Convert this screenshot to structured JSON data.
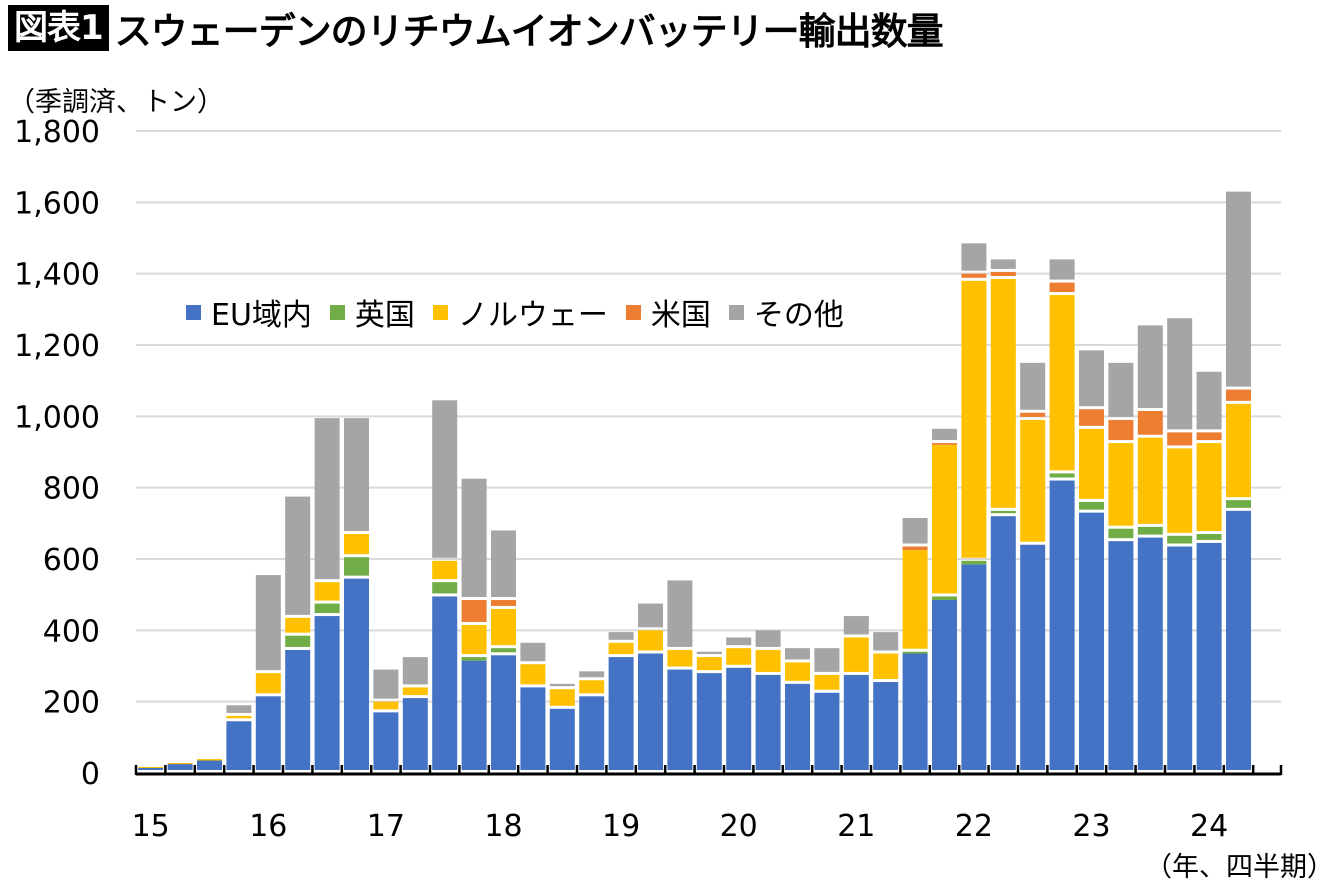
{
  "title": {
    "badge": "図表1",
    "text": "スウェーデンのリチウムイオンバッテリー輸出数量"
  },
  "chart_data": {
    "type": "bar",
    "stacked": true,
    "title": "スウェーデンのリチウムイオンバッテリー輸出数量",
    "ylabel": "（季調済、トン）",
    "xlabel": "（年、四半期）",
    "ylim": [
      0,
      1800
    ],
    "yticks": [
      0,
      200,
      400,
      600,
      800,
      1000,
      1200,
      1400,
      1600,
      1800
    ],
    "ytick_labels": [
      "0",
      "200",
      "400",
      "600",
      "800",
      "1,000",
      "1,200",
      "1,400",
      "1,600",
      "1,800"
    ],
    "grid": true,
    "legend_position": "upper-left",
    "x_year_labels": [
      "15",
      "16",
      "17",
      "18",
      "19",
      "20",
      "21",
      "22",
      "23",
      "24"
    ],
    "categories": [
      "15Q1",
      "15Q2",
      "15Q3",
      "15Q4",
      "16Q1",
      "16Q2",
      "16Q3",
      "16Q4",
      "17Q1",
      "17Q2",
      "17Q3",
      "17Q4",
      "18Q1",
      "18Q2",
      "18Q3",
      "18Q4",
      "19Q1",
      "19Q2",
      "19Q3",
      "19Q4",
      "20Q1",
      "20Q2",
      "20Q3",
      "20Q4",
      "21Q1",
      "21Q2",
      "21Q3",
      "21Q4",
      "22Q1",
      "22Q2",
      "22Q3",
      "22Q4",
      "23Q1",
      "23Q2",
      "23Q3",
      "23Q4",
      "24Q1",
      "24Q2"
    ],
    "series": [
      {
        "name": "EU域内",
        "color": "#4472C4",
        "values": [
          15,
          25,
          35,
          145,
          215,
          345,
          440,
          545,
          170,
          210,
          495,
          315,
          330,
          240,
          180,
          215,
          325,
          335,
          290,
          280,
          295,
          275,
          250,
          225,
          275,
          255,
          335,
          485,
          585,
          720,
          640,
          820,
          730,
          650,
          660,
          635,
          645,
          735
        ]
      },
      {
        "name": "英国",
        "color": "#70AD47",
        "values": [
          0,
          0,
          0,
          0,
          0,
          40,
          35,
          60,
          0,
          0,
          40,
          10,
          20,
          0,
          0,
          0,
          0,
          0,
          0,
          0,
          0,
          0,
          0,
          0,
          0,
          0,
          5,
          10,
          10,
          15,
          0,
          20,
          30,
          35,
          30,
          30,
          25,
          30
        ]
      },
      {
        "name": "ノルウェー",
        "color": "#FFC000",
        "values": [
          2,
          3,
          4,
          15,
          65,
          50,
          60,
          65,
          30,
          30,
          60,
          90,
          110,
          65,
          55,
          45,
          40,
          65,
          55,
          45,
          55,
          70,
          60,
          50,
          105,
          80,
          285,
          425,
          785,
          650,
          350,
          500,
          205,
          240,
          250,
          245,
          255,
          270
        ]
      },
      {
        "name": "米国",
        "color": "#ED7D31",
        "values": [
          0,
          0,
          0,
          0,
          0,
          0,
          0,
          0,
          0,
          0,
          0,
          70,
          25,
          0,
          0,
          0,
          0,
          0,
          0,
          0,
          0,
          0,
          0,
          0,
          0,
          0,
          10,
          5,
          20,
          20,
          20,
          35,
          55,
          65,
          75,
          45,
          30,
          40
        ]
      },
      {
        "name": "その他",
        "color": "#A5A5A5",
        "values": [
          0,
          0,
          0,
          30,
          275,
          340,
          460,
          325,
          90,
          85,
          450,
          340,
          195,
          60,
          15,
          25,
          30,
          75,
          195,
          15,
          30,
          55,
          40,
          75,
          60,
          60,
          80,
          40,
          85,
          35,
          140,
          65,
          165,
          160,
          240,
          320,
          170,
          555
        ]
      }
    ]
  }
}
